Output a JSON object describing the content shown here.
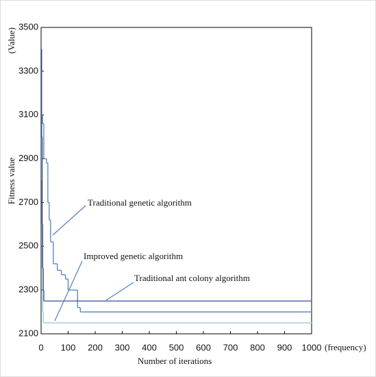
{
  "chart_data": {
    "type": "step-line",
    "y_unit_label": "(Value)",
    "ylabel": "Fitness value",
    "xlabel": "Number of iterations",
    "x_unit_label": "(frequency)",
    "xlim": [
      0,
      1000
    ],
    "xticks": [
      0,
      100,
      200,
      300,
      400,
      500,
      600,
      700,
      800,
      900,
      1000
    ],
    "ylim": [
      2100,
      3500
    ],
    "yticks": [
      2100,
      2300,
      2500,
      2700,
      2900,
      3100,
      3300,
      3500
    ],
    "series": [
      {
        "name": "Traditional genetic algorithm",
        "color": "#4f7fc0",
        "x": [
          0,
          5,
          10,
          20,
          25,
          30,
          35,
          45,
          60,
          75,
          90,
          100,
          135,
          145,
          1000
        ],
        "values": [
          3100,
          3060,
          2900,
          2880,
          2700,
          2620,
          2520,
          2420,
          2390,
          2370,
          2350,
          2300,
          2220,
          2200,
          2200
        ]
      },
      {
        "name": "Improved genetic algorithm",
        "color": "#8fc7dc",
        "x": [
          0,
          2,
          4,
          6,
          8,
          1000
        ],
        "values": [
          3300,
          2800,
          2400,
          2200,
          2150,
          2150
        ]
      },
      {
        "name": "Traditional ant colony algorithm",
        "color": "#3a4a8c",
        "x": [
          0,
          2,
          4,
          6,
          8,
          10,
          1000
        ],
        "values": [
          3400,
          3000,
          2600,
          2400,
          2300,
          2250,
          2250
        ]
      }
    ]
  }
}
